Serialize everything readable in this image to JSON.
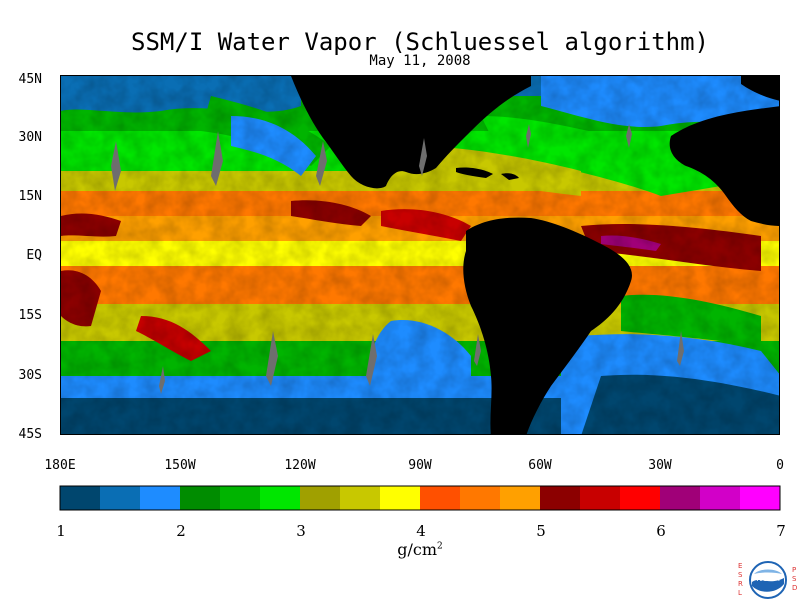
{
  "map": {
    "title": "SSM/I Water Vapor (Schluessel algorithm)",
    "date": "May 11, 2008",
    "lat_labels": [
      "45N",
      "30N",
      "15N",
      "EQ",
      "15S",
      "30S",
      "45S"
    ],
    "lon_labels": [
      "180E",
      "150W",
      "120W",
      "90W",
      "60W",
      "30W",
      "0"
    ],
    "colorbar": {
      "colors": [
        "#00466e",
        "#0a6eb4",
        "#1e8cff",
        "#008c00",
        "#00b400",
        "#00e600",
        "#a0a000",
        "#c8c800",
        "#ffff00",
        "#ff5000",
        "#ff7800",
        "#ffa000",
        "#8c0000",
        "#c80000",
        "#ff0000",
        "#a00078",
        "#d200c8",
        "#ff00ff"
      ],
      "tick_labels": [
        "1",
        "2",
        "3",
        "4",
        "5",
        "6",
        "7"
      ],
      "units": "g/cm",
      "units_sup": "2"
    },
    "logo": {
      "text": "NOAA",
      "left_letters": [
        "E",
        "S",
        "R",
        "L"
      ],
      "right_letters": [
        "P",
        "S",
        "D"
      ]
    },
    "colors": {
      "land": "#000000",
      "frame": "#000000"
    }
  }
}
